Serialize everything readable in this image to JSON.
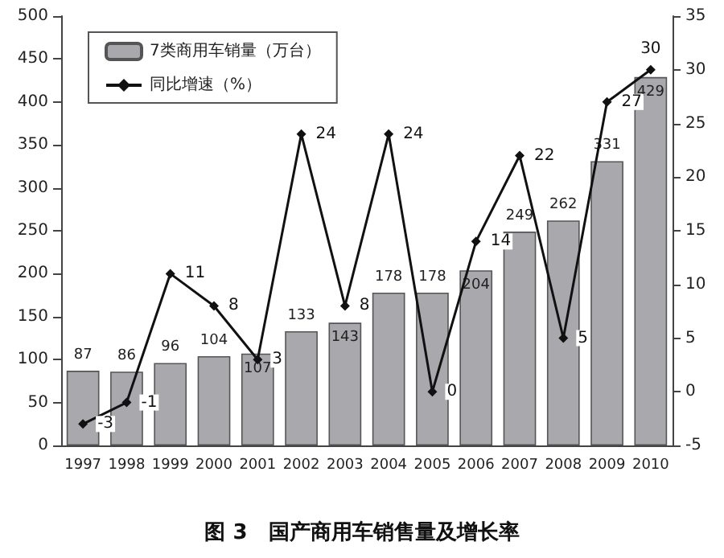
{
  "chart_data": {
    "type": "bar",
    "title": "图 3　国产商用车销售量及增长率",
    "categories": [
      "1997",
      "1998",
      "1999",
      "2000",
      "2001",
      "2002",
      "2003",
      "2004",
      "2005",
      "2006",
      "2007",
      "2008",
      "2009",
      "2010"
    ],
    "series": [
      {
        "name": "7类商用车销量（万台）",
        "color": "#a9a9ad",
        "values": [
          87,
          86,
          96,
          104,
          107,
          133,
          143,
          178,
          178,
          204,
          249,
          262,
          331,
          429
        ]
      },
      {
        "name": "同比增速（%）",
        "type": "line",
        "axis": "y2",
        "color": "#111111",
        "marker": "diamond",
        "values": [
          -3,
          -1,
          11,
          8,
          3,
          24,
          8,
          24,
          0,
          14,
          22,
          5,
          27,
          30
        ]
      }
    ],
    "ylim": [
      0,
      500
    ],
    "yticks": [
      0,
      50,
      100,
      150,
      200,
      250,
      300,
      350,
      400,
      450,
      500
    ],
    "y2lim": [
      -5,
      35
    ],
    "y2ticks": [
      -5,
      0,
      5,
      10,
      15,
      20,
      25,
      30,
      35
    ],
    "data_labels": true,
    "legend": "top left",
    "grid": false
  }
}
